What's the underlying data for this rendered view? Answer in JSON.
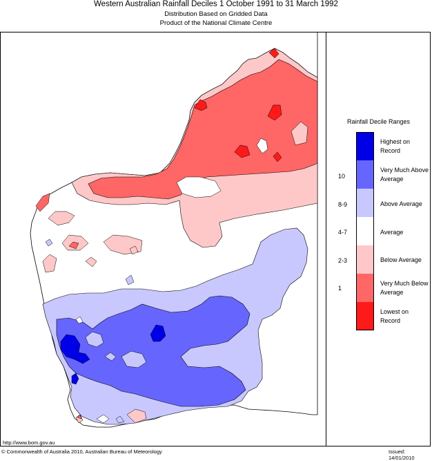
{
  "header": {
    "title": "Western Australian Rainfall Deciles      1 October 1991 to 31 March 1992",
    "subtitle_1": "Distribution Based on Gridded Data",
    "subtitle_2": "Product of the National Climate Centre"
  },
  "legend": {
    "title": "Rainfall Decile Ranges",
    "items": [
      {
        "code": "",
        "label": "Highest on Record",
        "color": "#0000e6"
      },
      {
        "code": "10",
        "label": "Very Much Above Average",
        "color": "#6666ff"
      },
      {
        "code": "8-9",
        "label": "Above Average",
        "color": "#c8c8ff"
      },
      {
        "code": "4-7",
        "label": "Average",
        "color": "#ffffff"
      },
      {
        "code": "2-3",
        "label": "Below Average",
        "color": "#ffc8c8"
      },
      {
        "code": "1",
        "label": "Very Much Below Average",
        "color": "#ff6666"
      },
      {
        "code": "",
        "label": "Lowest on Record",
        "color": "#ff1a1a"
      }
    ]
  },
  "footer": {
    "url": "http://www.bom.gov.au",
    "copyright": "© Commonwealth of Australia 2010, Australian Bureau of Meteorology",
    "issued": "Issued: 14/01/2010"
  }
}
